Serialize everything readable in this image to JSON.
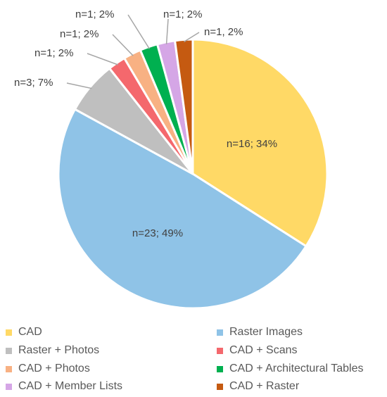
{
  "chart_data": {
    "type": "pie",
    "title": "",
    "start_angle_deg": 0,
    "direction": "clockwise",
    "legend_position": "bottom",
    "slices": [
      {
        "label": "CAD",
        "value": 16,
        "percent": 34,
        "data_label": "n=16; 34%",
        "color": "#FFD966"
      },
      {
        "label": "Raster Images",
        "value": 23,
        "percent": 49,
        "data_label": "n=23; 49%",
        "color": "#8FC3E7"
      },
      {
        "label": "Raster + Photos",
        "value": 3,
        "percent": 7,
        "data_label": "n=3; 7%",
        "color": "#BFBFBF"
      },
      {
        "label": "CAD + Scans",
        "value": 1,
        "percent": 2,
        "data_label": "n=1; 2%",
        "color": "#F4686D"
      },
      {
        "label": "CAD + Photos",
        "value": 1,
        "percent": 2,
        "data_label": "n=1; 2%",
        "color": "#F8B183"
      },
      {
        "label": "CAD + Architectural Tables",
        "value": 1,
        "percent": 2,
        "data_label": "n=1; 2%",
        "color": "#00B050"
      },
      {
        "label": "CAD + Member Lists",
        "value": 1,
        "percent": 2,
        "data_label": "n=1; 2%",
        "color": "#D5A6E6"
      },
      {
        "label": "CAD + Raster",
        "value": 1,
        "percent": 2,
        "data_label": "n=1, 2%",
        "color": "#C55A11"
      }
    ]
  }
}
